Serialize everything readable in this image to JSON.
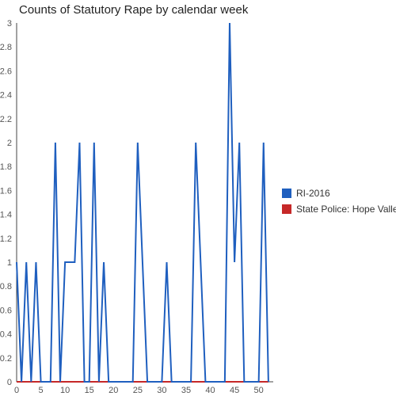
{
  "chart_data": {
    "type": "line",
    "title": "Counts of Statutory Rape by calendar week",
    "xlabel": "",
    "ylabel": "",
    "xlim": [
      0,
      53
    ],
    "ylim": [
      0,
      3
    ],
    "x_ticks": [
      0,
      5,
      10,
      15,
      20,
      25,
      30,
      35,
      40,
      45,
      50
    ],
    "y_ticks": [
      0,
      0.2,
      0.4,
      0.6,
      0.8,
      1,
      1.2,
      1.4,
      1.6,
      1.8,
      2,
      2.2,
      2.4,
      2.6,
      2.8,
      3
    ],
    "grid": false,
    "legend_position": "right",
    "series": [
      {
        "name": "RI-2016",
        "color": "#1f5fbf",
        "x": [
          0,
          1,
          2,
          3,
          4,
          5,
          6,
          7,
          8,
          9,
          10,
          11,
          12,
          13,
          14,
          15,
          16,
          17,
          18,
          19,
          20,
          21,
          22,
          23,
          24,
          25,
          26,
          27,
          28,
          29,
          30,
          31,
          32,
          33,
          34,
          35,
          36,
          37,
          38,
          39,
          40,
          41,
          42,
          43,
          44,
          45,
          46,
          47,
          48,
          49,
          50,
          51,
          52
        ],
        "values": [
          1,
          0,
          1,
          0,
          1,
          0,
          0,
          0,
          2,
          0,
          1,
          1,
          1,
          2,
          0,
          0,
          2,
          0,
          1,
          0,
          0,
          0,
          0,
          0,
          0,
          2,
          1,
          0,
          0,
          0,
          0,
          1,
          0,
          0,
          0,
          0,
          0,
          2,
          1,
          0,
          0,
          0,
          0,
          0,
          3,
          1,
          2,
          0,
          0,
          0,
          0,
          2,
          0
        ]
      },
      {
        "name": "State Police: Hope Valley",
        "color": "#c62828",
        "x": [
          0,
          1,
          2,
          3,
          4,
          5,
          6,
          7,
          8,
          9,
          10,
          11,
          12,
          13,
          14,
          15,
          16,
          17,
          18,
          19,
          20,
          21,
          22,
          23,
          24,
          25,
          26,
          27,
          28,
          29,
          30,
          31,
          32,
          33,
          34,
          35,
          36,
          37,
          38,
          39,
          40,
          41,
          42,
          43,
          44,
          45,
          46,
          47,
          48,
          49,
          50,
          51,
          52
        ],
        "values": [
          0,
          0,
          0,
          0,
          0,
          0,
          0,
          0,
          0,
          0,
          0,
          0,
          0,
          0,
          0,
          0,
          0,
          0,
          0,
          0,
          0,
          0,
          0,
          0,
          0,
          0,
          0,
          0,
          0,
          0,
          0,
          0,
          0,
          0,
          0,
          0,
          0,
          0,
          0,
          0,
          0,
          0,
          0,
          0,
          0,
          0,
          0,
          0,
          0,
          0,
          0,
          0,
          0
        ]
      }
    ]
  }
}
